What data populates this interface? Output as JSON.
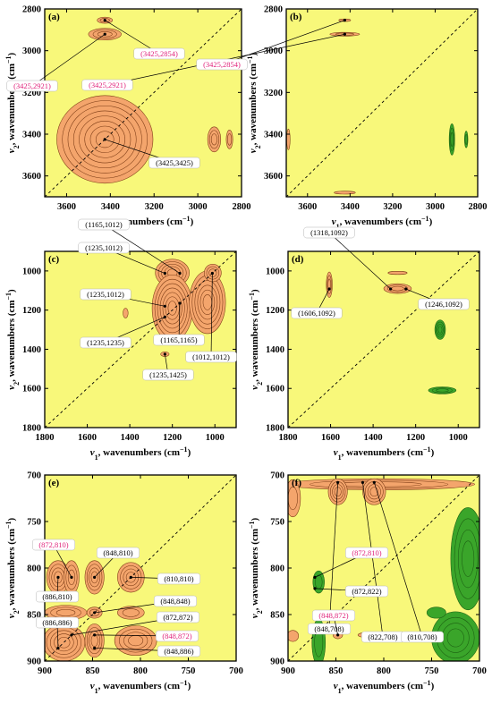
{
  "figure": {
    "background": "#f8f87a",
    "positive_color": "#f4a56c",
    "positive_edge": "#7a3a14",
    "negative_color": "#3aa52a",
    "negative_edge": "#1c5e12",
    "highlight_label_color": "#e0217a",
    "normal_label_color": "#000000"
  },
  "chart_data": [
    {
      "panel": "(a)",
      "type": "heatmap",
      "subtype": "2D correlation contour",
      "xlabel_var": "ν",
      "xlabel_sub": "1",
      "xlabel_rest": ", wavenumbers (cm",
      "xlabel_sup": "−1",
      "xlabel_end": ")",
      "ylabel_var": "ν",
      "ylabel_sub": "2",
      "ylabel_rest": ", wavenumbers (cm",
      "ylabel_sup": "−1",
      "ylabel_end": ")",
      "xlim": [
        3700,
        2800
      ],
      "ylim": [
        2800,
        3700
      ],
      "xticks": [
        3600,
        3400,
        3200,
        3000,
        2800
      ],
      "yticks": [
        2800,
        3000,
        3200,
        3400,
        3600
      ],
      "blobs": [
        {
          "sign": "+",
          "x": 3425,
          "y": 3425,
          "rx": 220,
          "ry": 210,
          "levels": 8
        },
        {
          "sign": "+",
          "x": 3425,
          "y": 2921,
          "rx": 75,
          "ry": 28,
          "levels": 3
        },
        {
          "sign": "+",
          "x": 3425,
          "y": 2854,
          "rx": 35,
          "ry": 15,
          "levels": 2
        },
        {
          "sign": "+",
          "x": 2925,
          "y": 3425,
          "rx": 30,
          "ry": 60,
          "levels": 3
        },
        {
          "sign": "+",
          "x": 2855,
          "y": 3425,
          "rx": 15,
          "ry": 45,
          "levels": 2
        }
      ],
      "annotations": [
        {
          "text": "(3425,2921)",
          "x": 3425,
          "y": 2921,
          "highlight": true
        },
        {
          "text": "(3425,2854)",
          "x": 3425,
          "y": 2854,
          "highlight": true
        },
        {
          "text": "(3425,3425)",
          "x": 3425,
          "y": 3425,
          "highlight": false
        }
      ]
    },
    {
      "panel": "(b)",
      "type": "heatmap",
      "subtype": "2D correlation contour",
      "xlabel_var": "ν",
      "xlabel_sub": "1",
      "xlabel_rest": ", wavenumbers (cm",
      "xlabel_sup": "−1",
      "xlabel_end": ")",
      "ylabel_var": "ν",
      "ylabel_sub": "2",
      "ylabel_rest": ", wavenumbers (cm",
      "ylabel_sup": "−1",
      "ylabel_end": ")",
      "xlim": [
        3700,
        2800
      ],
      "ylim": [
        2800,
        3700
      ],
      "xticks": [
        3600,
        3400,
        3200,
        3000,
        2800
      ],
      "yticks": [
        2800,
        3000,
        3200,
        3400,
        3600
      ],
      "blobs": [
        {
          "sign": "+",
          "x": 3425,
          "y": 2921,
          "rx": 70,
          "ry": 9,
          "levels": 2
        },
        {
          "sign": "+",
          "x": 3425,
          "y": 2854,
          "rx": 28,
          "ry": 6,
          "levels": 1
        },
        {
          "sign": "+",
          "x": 3425,
          "y": 3680,
          "rx": 50,
          "ry": 7,
          "levels": 1
        },
        {
          "sign": "+",
          "x": 3690,
          "y": 3425,
          "rx": 8,
          "ry": 50,
          "levels": 1
        },
        {
          "sign": "-",
          "x": 2921,
          "y": 3425,
          "rx": 13,
          "ry": 75,
          "levels": 3
        },
        {
          "sign": "-",
          "x": 2854,
          "y": 3425,
          "rx": 8,
          "ry": 40,
          "levels": 2
        }
      ],
      "annotations": [
        {
          "text": "(3425,2921)",
          "x": 3425,
          "y": 2921,
          "highlight": true
        },
        {
          "text": "(3425,2854)",
          "x": 3425,
          "y": 2854,
          "highlight": true
        }
      ]
    },
    {
      "panel": "(c)",
      "type": "heatmap",
      "subtype": "2D correlation contour",
      "xlabel_var": "ν",
      "xlabel_sub": "1",
      "xlabel_rest": ", wavenumbers (cm",
      "xlabel_sup": "−1",
      "xlabel_end": ")",
      "ylabel_var": "ν",
      "ylabel_sub": "2",
      "ylabel_rest": ", wavenumbers (cm",
      "ylabel_sup": "−1",
      "ylabel_end": ")",
      "xlim": [
        1800,
        900
      ],
      "ylim": [
        900,
        1800
      ],
      "xticks": [
        1800,
        1600,
        1400,
        1200,
        1000
      ],
      "yticks": [
        1000,
        1200,
        1400,
        1600,
        1800
      ],
      "blobs": [
        {
          "sign": "+",
          "x": 1200,
          "y": 1010,
          "rx": 80,
          "ry": 70,
          "levels": 5
        },
        {
          "sign": "+",
          "x": 1200,
          "y": 1190,
          "rx": 95,
          "ry": 170,
          "levels": 7
        },
        {
          "sign": "+",
          "x": 1035,
          "y": 1160,
          "rx": 85,
          "ry": 160,
          "levels": 6
        },
        {
          "sign": "+",
          "x": 1010,
          "y": 1010,
          "rx": 40,
          "ry": 45,
          "levels": 3
        },
        {
          "sign": "+",
          "x": 1420,
          "y": 1215,
          "rx": 12,
          "ry": 25,
          "levels": 1
        },
        {
          "sign": "+",
          "x": 1235,
          "y": 1425,
          "rx": 20,
          "ry": 12,
          "levels": 1
        }
      ],
      "annotations": [
        {
          "text": "(1165,1012)",
          "x": 1165,
          "y": 1012,
          "highlight": false
        },
        {
          "text": "(1235,1012)",
          "x": 1235,
          "y": 1012,
          "highlight": false
        },
        {
          "text": "(1235,1012)",
          "x": 1235,
          "y": 1180,
          "highlight": false
        },
        {
          "text": "(1235,1235)",
          "x": 1235,
          "y": 1235,
          "highlight": false
        },
        {
          "text": "(1165,1165)",
          "x": 1165,
          "y": 1165,
          "highlight": false
        },
        {
          "text": "(1235,1425)",
          "x": 1235,
          "y": 1425,
          "highlight": false
        },
        {
          "text": "(1012,1012)",
          "x": 1012,
          "y": 1012,
          "highlight": false
        }
      ]
    },
    {
      "panel": "(d)",
      "type": "heatmap",
      "subtype": "2D correlation contour",
      "xlabel_var": "ν",
      "xlabel_sub": "1",
      "xlabel_rest": ", wavenumbers (cm",
      "xlabel_sup": "−1",
      "xlabel_end": ")",
      "ylabel_var": "ν",
      "ylabel_sub": "2",
      "ylabel_rest": ", wavenumbers (cm",
      "ylabel_sup": "−1",
      "ylabel_end": ")",
      "xlim": [
        1800,
        900
      ],
      "ylim": [
        900,
        1800
      ],
      "xticks": [
        1800,
        1600,
        1400,
        1200,
        1000
      ],
      "yticks": [
        1000,
        1200,
        1400,
        1600,
        1800
      ],
      "blobs": [
        {
          "sign": "+",
          "x": 1606,
          "y": 1070,
          "rx": 14,
          "ry": 65,
          "levels": 3
        },
        {
          "sign": "+",
          "x": 1285,
          "y": 1090,
          "rx": 65,
          "ry": 25,
          "levels": 3
        },
        {
          "sign": "+",
          "x": 1285,
          "y": 1010,
          "rx": 45,
          "ry": 8,
          "levels": 1
        },
        {
          "sign": "-",
          "x": 1085,
          "y": 1300,
          "rx": 25,
          "ry": 50,
          "levels": 4
        },
        {
          "sign": "-",
          "x": 1075,
          "y": 1610,
          "rx": 65,
          "ry": 18,
          "levels": 3
        }
      ],
      "annotations": [
        {
          "text": "(1318,1092)",
          "x": 1318,
          "y": 1092,
          "highlight": false
        },
        {
          "text": "(1606,1092)",
          "x": 1606,
          "y": 1092,
          "highlight": false
        },
        {
          "text": "(1246,1092)",
          "x": 1246,
          "y": 1092,
          "highlight": false
        }
      ]
    },
    {
      "panel": "(e)",
      "type": "heatmap",
      "subtype": "2D correlation contour",
      "xlabel_var": "ν",
      "xlabel_sub": "1",
      "xlabel_rest": ", wavenumbers (cm",
      "xlabel_sup": "−1",
      "xlabel_end": ")",
      "ylabel_var": "ν",
      "ylabel_sub": "2",
      "ylabel_rest": ", wavenumbers (cm",
      "ylabel_sup": "−1",
      "ylabel_end": ")",
      "xlim": [
        900,
        700
      ],
      "ylim": [
        700,
        900
      ],
      "xticks": [
        900,
        850,
        800,
        750,
        700
      ],
      "yticks": [
        700,
        750,
        800,
        850,
        900
      ],
      "blobs": [
        {
          "sign": "+",
          "x": 886,
          "y": 810,
          "rx": 12,
          "ry": 18,
          "levels": 4
        },
        {
          "sign": "+",
          "x": 872,
          "y": 810,
          "rx": 8,
          "ry": 18,
          "levels": 3
        },
        {
          "sign": "+",
          "x": 848,
          "y": 810,
          "rx": 10,
          "ry": 18,
          "levels": 4
        },
        {
          "sign": "+",
          "x": 810,
          "y": 810,
          "rx": 14,
          "ry": 16,
          "levels": 4
        },
        {
          "sign": "+",
          "x": 878,
          "y": 848,
          "rx": 22,
          "ry": 8,
          "levels": 3
        },
        {
          "sign": "+",
          "x": 848,
          "y": 848,
          "rx": 8,
          "ry": 6,
          "levels": 2
        },
        {
          "sign": "+",
          "x": 810,
          "y": 848,
          "rx": 14,
          "ry": 7,
          "levels": 2
        },
        {
          "sign": "+",
          "x": 880,
          "y": 880,
          "rx": 22,
          "ry": 20,
          "levels": 5
        },
        {
          "sign": "+",
          "x": 848,
          "y": 878,
          "rx": 10,
          "ry": 18,
          "levels": 4
        },
        {
          "sign": "+",
          "x": 805,
          "y": 878,
          "rx": 22,
          "ry": 16,
          "levels": 4
        }
      ],
      "annotations": [
        {
          "text": "(872,810)",
          "x": 872,
          "y": 810,
          "highlight": true
        },
        {
          "text": "(848,810)",
          "x": 848,
          "y": 810,
          "highlight": false
        },
        {
          "text": "(810,810)",
          "x": 810,
          "y": 810,
          "highlight": false
        },
        {
          "text": "(886,810)",
          "x": 886,
          "y": 810,
          "highlight": false
        },
        {
          "text": "(848,848)",
          "x": 848,
          "y": 848,
          "highlight": false
        },
        {
          "text": "(886,886)",
          "x": 886,
          "y": 886,
          "highlight": false
        },
        {
          "text": "(872,872)",
          "x": 872,
          "y": 872,
          "highlight": false
        },
        {
          "text": "(848,872)",
          "x": 848,
          "y": 872,
          "highlight": true
        },
        {
          "text": "(848,886)",
          "x": 848,
          "y": 886,
          "highlight": false
        }
      ]
    },
    {
      "panel": "(f)",
      "type": "heatmap",
      "subtype": "2D correlation contour",
      "xlabel_var": "ν",
      "xlabel_sub": "1",
      "xlabel_rest": ", wavenumbers (cm",
      "xlabel_sup": "−1",
      "xlabel_end": ")",
      "ylabel_var": "ν",
      "ylabel_sub": "2",
      "ylabel_rest": ", wavenumbers (cm",
      "ylabel_sup": "−1",
      "ylabel_end": ")",
      "xlim": [
        900,
        700
      ],
      "ylim": [
        700,
        900
      ],
      "xticks": [
        900,
        850,
        800,
        750,
        700
      ],
      "yticks": [
        700,
        750,
        800,
        850,
        900
      ],
      "blobs": [
        {
          "sign": "+",
          "x": 805,
          "y": 710,
          "rx": 100,
          "ry": 6,
          "levels": 3
        },
        {
          "sign": "+",
          "x": 848,
          "y": 718,
          "rx": 10,
          "ry": 14,
          "levels": 4
        },
        {
          "sign": "+",
          "x": 810,
          "y": 718,
          "rx": 12,
          "ry": 14,
          "levels": 4
        },
        {
          "sign": "+",
          "x": 895,
          "y": 725,
          "rx": 8,
          "ry": 20,
          "levels": 2
        },
        {
          "sign": "+",
          "x": 895,
          "y": 873,
          "rx": 6,
          "ry": 6,
          "levels": 1
        },
        {
          "sign": "+",
          "x": 848,
          "y": 872,
          "rx": 5,
          "ry": 4,
          "levels": 1
        },
        {
          "sign": "+",
          "x": 815,
          "y": 872,
          "rx": 12,
          "ry": 3,
          "levels": 1
        },
        {
          "sign": "-",
          "x": 712,
          "y": 790,
          "rx": 18,
          "ry": 55,
          "levels": 4
        },
        {
          "sign": "-",
          "x": 725,
          "y": 875,
          "rx": 25,
          "ry": 28,
          "levels": 4
        },
        {
          "sign": "-",
          "x": 868,
          "y": 815,
          "rx": 6,
          "ry": 12,
          "levels": 2
        },
        {
          "sign": "-",
          "x": 868,
          "y": 880,
          "rx": 7,
          "ry": 25,
          "levels": 2
        },
        {
          "sign": "-",
          "x": 745,
          "y": 848,
          "rx": 10,
          "ry": 6,
          "levels": 1
        }
      ],
      "annotations": [
        {
          "text": "(848,708)",
          "x": 848,
          "y": 708,
          "highlight": false
        },
        {
          "text": "(822,708)",
          "x": 822,
          "y": 708,
          "highlight": false
        },
        {
          "text": "(810,708)",
          "x": 810,
          "y": 708,
          "highlight": false
        },
        {
          "text": "(872,810)",
          "x": 872,
          "y": 810,
          "highlight": true
        },
        {
          "text": "(872,822)",
          "x": 872,
          "y": 822,
          "highlight": false
        },
        {
          "text": "(848,872)",
          "x": 848,
          "y": 872,
          "highlight": true
        }
      ]
    }
  ]
}
